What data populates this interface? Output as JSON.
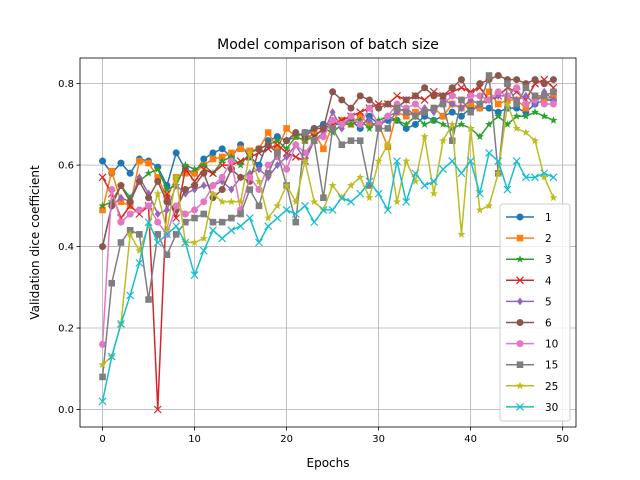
{
  "chart_data": {
    "type": "line",
    "title": "Model comparison of batch size",
    "xlabel": "Epochs",
    "ylabel": "Validation dice coefficient",
    "xlim": [
      -2.45,
      51.45
    ],
    "ylim": [
      -0.043,
      0.863
    ],
    "xticks": [
      0,
      10,
      20,
      30,
      40,
      50
    ],
    "yticks": [
      0.0,
      0.2,
      0.4,
      0.6,
      0.8
    ],
    "xtick_labels": [
      "0",
      "10",
      "20",
      "30",
      "40",
      "50"
    ],
    "ytick_labels": [
      "0.0",
      "0.2",
      "0.4",
      "0.6",
      "0.8"
    ],
    "grid": true,
    "legend_position": "lower-right",
    "series": [
      {
        "name": "1",
        "color": "#1f77b4",
        "marker": "circle",
        "values": [
          0.61,
          0.58,
          0.605,
          0.58,
          0.615,
          0.61,
          0.595,
          0.55,
          0.63,
          0.59,
          0.58,
          0.615,
          0.63,
          0.64,
          0.62,
          0.65,
          0.62,
          0.6,
          0.66,
          0.67,
          0.66,
          0.67,
          0.68,
          0.69,
          0.7,
          0.7,
          0.7,
          0.71,
          0.69,
          0.72,
          0.7,
          0.71,
          0.71,
          0.69,
          0.7,
          0.72,
          0.71,
          0.72,
          0.73,
          0.72,
          0.74,
          0.74,
          0.74,
          0.73,
          0.74,
          0.74,
          0.73,
          0.75,
          0.76,
          0.76
        ]
      },
      {
        "name": "2",
        "color": "#ff7f0e",
        "marker": "square",
        "values": [
          0.49,
          0.585,
          0.51,
          0.5,
          0.61,
          0.605,
          0.57,
          0.52,
          0.57,
          0.58,
          0.58,
          0.6,
          0.615,
          0.62,
          0.63,
          0.64,
          0.635,
          0.64,
          0.68,
          0.64,
          0.69,
          0.67,
          0.66,
          0.68,
          0.64,
          0.7,
          0.71,
          0.7,
          0.72,
          0.7,
          0.7,
          0.645,
          0.73,
          0.72,
          0.73,
          0.73,
          0.74,
          0.72,
          0.75,
          0.74,
          0.75,
          0.74,
          0.78,
          0.75,
          0.76,
          0.76,
          0.74,
          0.77,
          0.76,
          0.77
        ]
      },
      {
        "name": "3",
        "color": "#2ca02c",
        "marker": "star",
        "values": [
          0.5,
          0.51,
          0.55,
          0.52,
          0.56,
          0.58,
          0.59,
          0.54,
          0.55,
          0.6,
          0.59,
          0.6,
          0.58,
          0.61,
          0.62,
          0.6,
          0.63,
          0.64,
          0.65,
          0.66,
          0.64,
          0.67,
          0.66,
          0.67,
          0.69,
          0.68,
          0.7,
          0.7,
          0.71,
          0.69,
          0.71,
          0.72,
          0.71,
          0.7,
          0.72,
          0.7,
          0.71,
          0.7,
          0.69,
          0.7,
          0.69,
          0.67,
          0.7,
          0.72,
          0.7,
          0.72,
          0.72,
          0.73,
          0.72,
          0.71
        ]
      },
      {
        "name": "4",
        "color": "#d62728",
        "marker": "x",
        "values": [
          0.57,
          0.53,
          0.47,
          0.5,
          0.48,
          0.5,
          0.0,
          0.53,
          0.47,
          0.59,
          0.56,
          0.59,
          0.58,
          0.6,
          0.6,
          0.61,
          0.62,
          0.63,
          0.64,
          0.65,
          0.63,
          0.62,
          0.61,
          0.67,
          0.69,
          0.7,
          0.71,
          0.72,
          0.73,
          0.74,
          0.75,
          0.75,
          0.77,
          0.76,
          0.77,
          0.76,
          0.78,
          0.77,
          0.78,
          0.79,
          0.78,
          0.79,
          0.76,
          0.77,
          0.79,
          0.78,
          0.76,
          0.8,
          0.81,
          0.79
        ]
      },
      {
        "name": "5",
        "color": "#9467bd",
        "marker": "diamond",
        "values": [
          0.4,
          0.5,
          0.52,
          0.51,
          0.57,
          0.53,
          0.48,
          0.49,
          0.55,
          0.53,
          0.54,
          0.55,
          0.55,
          0.56,
          0.54,
          0.57,
          0.58,
          0.59,
          0.57,
          0.6,
          0.62,
          0.65,
          0.61,
          0.66,
          0.68,
          0.73,
          0.69,
          0.72,
          0.7,
          0.71,
          0.69,
          0.72,
          0.73,
          0.74,
          0.72,
          0.74,
          0.73,
          0.76,
          0.75,
          0.74,
          0.76,
          0.75,
          0.76,
          0.77,
          0.77,
          0.76,
          0.77,
          0.75,
          0.78,
          0.76
        ]
      },
      {
        "name": "6",
        "color": "#8c564b",
        "marker": "circle",
        "values": [
          0.4,
          0.5,
          0.55,
          0.51,
          0.56,
          0.52,
          0.56,
          0.51,
          0.49,
          0.54,
          0.55,
          0.58,
          0.52,
          0.54,
          0.59,
          0.57,
          0.56,
          0.64,
          0.65,
          0.63,
          0.66,
          0.68,
          0.67,
          0.69,
          0.69,
          0.78,
          0.76,
          0.74,
          0.77,
          0.76,
          0.74,
          0.75,
          0.74,
          0.76,
          0.77,
          0.79,
          0.77,
          0.77,
          0.79,
          0.81,
          0.77,
          0.8,
          0.81,
          0.82,
          0.81,
          0.81,
          0.8,
          0.81,
          0.8,
          0.81
        ]
      },
      {
        "name": "10",
        "color": "#e377c2",
        "marker": "circle",
        "values": [
          0.16,
          0.54,
          0.46,
          0.48,
          0.49,
          0.5,
          0.46,
          0.43,
          0.5,
          0.48,
          0.49,
          0.51,
          0.55,
          0.57,
          0.61,
          0.49,
          0.57,
          0.54,
          0.6,
          0.62,
          0.59,
          0.65,
          0.63,
          0.66,
          0.67,
          0.71,
          0.7,
          0.72,
          0.7,
          0.74,
          0.7,
          0.72,
          0.75,
          0.74,
          0.75,
          0.73,
          0.74,
          0.75,
          0.77,
          0.76,
          0.77,
          0.77,
          0.76,
          0.78,
          0.77,
          0.79,
          0.75,
          0.76,
          0.75,
          0.75
        ]
      },
      {
        "name": "15",
        "color": "#7f7f7f",
        "marker": "square",
        "values": [
          0.08,
          0.31,
          0.41,
          0.44,
          0.43,
          0.27,
          0.43,
          0.38,
          0.43,
          0.46,
          0.47,
          0.48,
          0.46,
          0.46,
          0.47,
          0.48,
          0.54,
          0.5,
          0.58,
          0.63,
          0.55,
          0.46,
          0.68,
          0.66,
          0.52,
          0.69,
          0.65,
          0.66,
          0.66,
          0.55,
          0.69,
          0.69,
          0.74,
          0.73,
          0.72,
          0.73,
          0.74,
          0.75,
          0.66,
          0.76,
          0.73,
          0.75,
          0.82,
          0.58,
          0.8,
          0.75,
          0.79,
          0.77,
          0.77,
          0.78
        ]
      },
      {
        "name": "25",
        "color": "#bcbd22",
        "marker": "star",
        "values": [
          0.11,
          0.13,
          0.21,
          0.43,
          0.39,
          0.45,
          0.53,
          0.44,
          0.57,
          0.41,
          0.41,
          0.42,
          0.53,
          0.51,
          0.51,
          0.51,
          0.63,
          0.56,
          0.47,
          0.5,
          0.55,
          0.51,
          0.61,
          0.51,
          0.49,
          0.55,
          0.52,
          0.55,
          0.57,
          0.52,
          0.61,
          0.65,
          0.51,
          0.61,
          0.56,
          0.67,
          0.53,
          0.66,
          0.7,
          0.43,
          0.69,
          0.49,
          0.5,
          0.58,
          0.75,
          0.69,
          0.68,
          0.66,
          0.57,
          0.52
        ]
      },
      {
        "name": "30",
        "color": "#17becf",
        "marker": "x",
        "values": [
          0.02,
          0.13,
          0.21,
          0.28,
          0.36,
          0.46,
          0.41,
          0.43,
          0.45,
          0.41,
          0.33,
          0.39,
          0.44,
          0.42,
          0.44,
          0.45,
          0.47,
          0.41,
          0.45,
          0.47,
          0.49,
          0.48,
          0.5,
          0.46,
          0.49,
          0.49,
          0.52,
          0.51,
          0.53,
          0.56,
          0.53,
          0.49,
          0.61,
          0.51,
          0.58,
          0.55,
          0.56,
          0.59,
          0.61,
          0.58,
          0.61,
          0.53,
          0.63,
          0.61,
          0.54,
          0.61,
          0.57,
          0.57,
          0.58,
          0.57
        ]
      }
    ]
  }
}
